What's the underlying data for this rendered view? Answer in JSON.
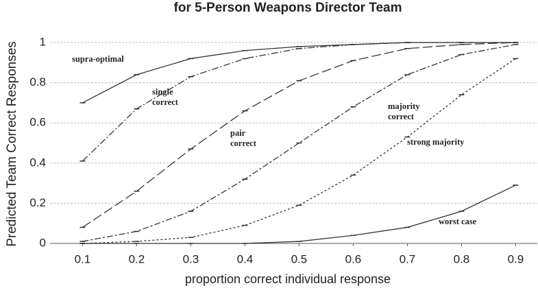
{
  "chart_data": {
    "type": "line",
    "title": "for 5-Person Weapons Director Team",
    "xlabel": "proportion correct individual response",
    "ylabel": "Predicted Team Correct Responses",
    "x": [
      0.1,
      0.2,
      0.3,
      0.4,
      0.5,
      0.6,
      0.7,
      0.8,
      0.9
    ],
    "series": [
      {
        "name": "supra-optimal",
        "color": "#333333",
        "values": [
          0.7,
          0.84,
          0.92,
          0.96,
          0.98,
          0.99,
          1.0,
          1.0,
          1.0
        ]
      },
      {
        "name": "single correct",
        "color": "#333333",
        "values": [
          0.41,
          0.67,
          0.83,
          0.92,
          0.97,
          0.99,
          1.0,
          1.0,
          1.0
        ]
      },
      {
        "name": "pair correct",
        "color": "#333333",
        "values": [
          0.08,
          0.26,
          0.47,
          0.66,
          0.81,
          0.91,
          0.97,
          0.99,
          1.0
        ]
      },
      {
        "name": "majority correct",
        "color": "#333333",
        "values": [
          0.01,
          0.06,
          0.16,
          0.32,
          0.5,
          0.68,
          0.84,
          0.94,
          0.99
        ]
      },
      {
        "name": "strong majority",
        "color": "#333333",
        "values": [
          0.0,
          0.01,
          0.03,
          0.09,
          0.19,
          0.34,
          0.53,
          0.74,
          0.92
        ]
      },
      {
        "name": "worst case",
        "color": "#333333",
        "values": [
          0.0,
          0.0,
          0.0,
          0.0,
          0.01,
          0.04,
          0.08,
          0.16,
          0.29
        ]
      }
    ],
    "xlim": [
      0.04,
      0.94
    ],
    "xticks": [
      0.1,
      0.2,
      0.3,
      0.4,
      0.5,
      0.6,
      0.7,
      0.8,
      0.9
    ],
    "ylim": [
      0,
      1
    ],
    "yticks": [
      0,
      0.2,
      0.4,
      0.6,
      0.8,
      1
    ],
    "grid": true
  }
}
